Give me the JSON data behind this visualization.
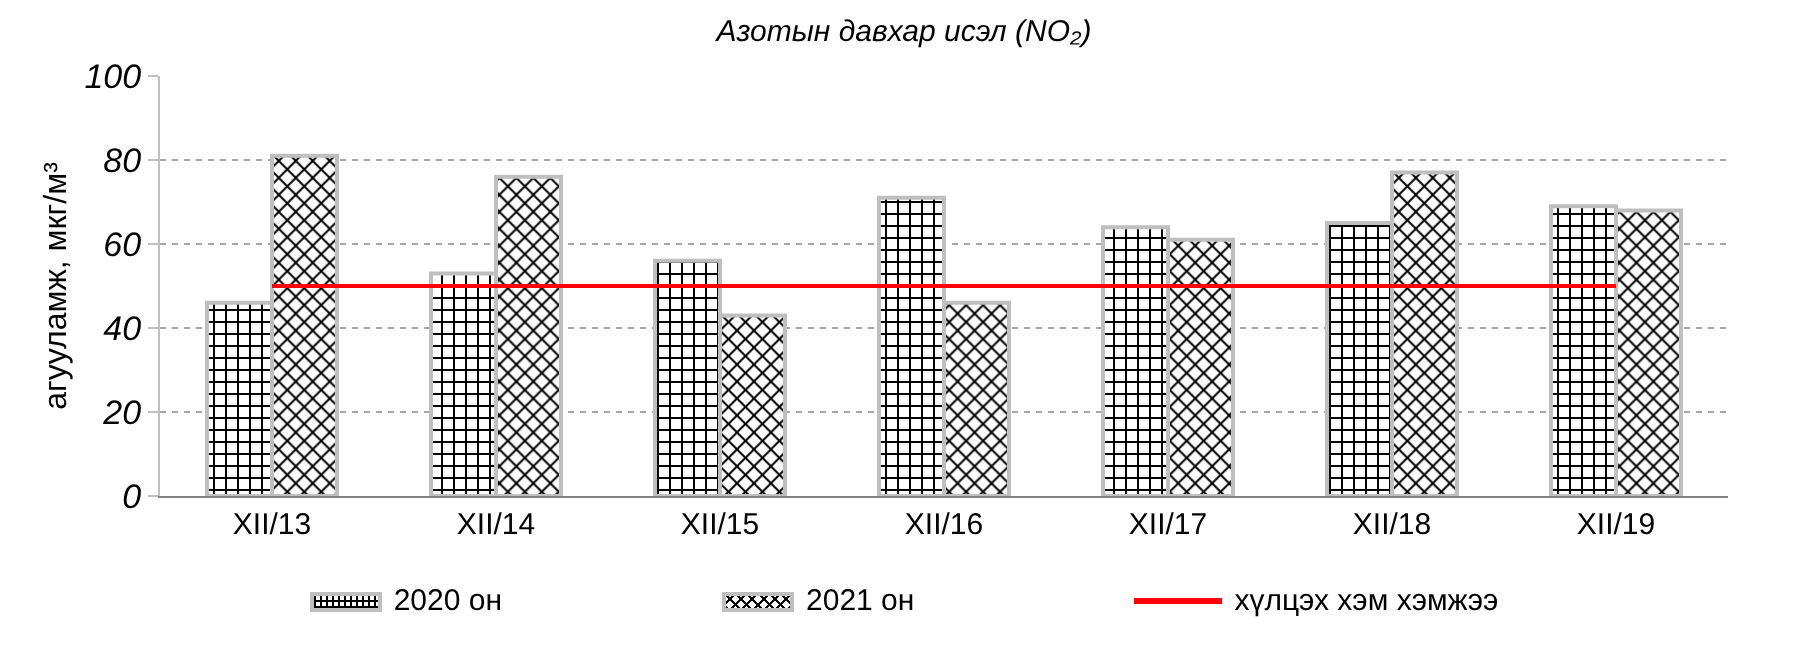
{
  "chart_data": {
    "type": "bar",
    "title": "Азотын давхар исэл (NO₂)",
    "ylabel": "агууламж, мкг/м³",
    "categories": [
      "XII/13",
      "XII/14",
      "XII/15",
      "XII/16",
      "XII/17",
      "XII/18",
      "XII/19"
    ],
    "series": [
      {
        "name": "2020 он",
        "color": "#bfbfbf",
        "values": [
          46,
          53,
          56,
          71,
          64,
          65,
          69
        ]
      },
      {
        "name": "2021 он",
        "color": "#bfbfbf",
        "values": [
          81,
          76,
          43,
          46,
          61,
          77,
          68
        ]
      },
      {
        "name": "хүлцэх хэм хэмжээ",
        "type": "line",
        "color": "#ff0000",
        "values": [
          50,
          50,
          50,
          50,
          50,
          50,
          50
        ]
      }
    ],
    "ylim": [
      0,
      100
    ],
    "yticks": [
      0,
      20,
      40,
      60,
      80,
      100
    ],
    "grid": "y",
    "legend": "bottom",
    "marker": "none"
  }
}
